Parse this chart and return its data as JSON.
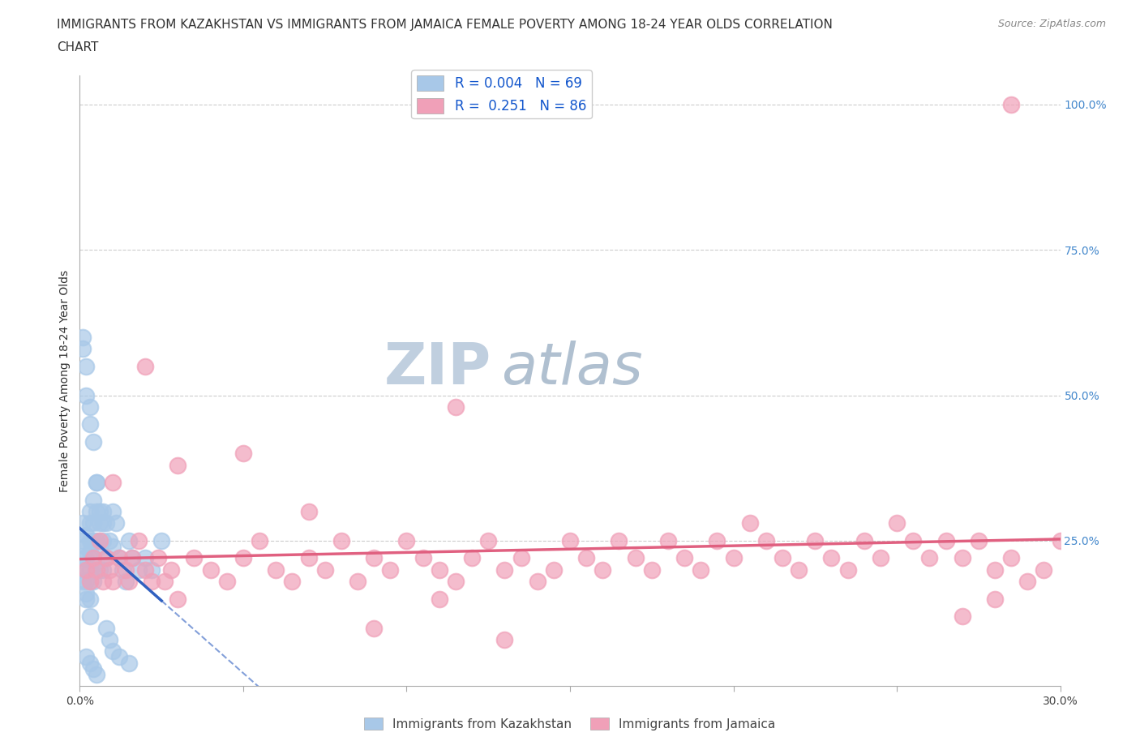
{
  "title_line1": "IMMIGRANTS FROM KAZAKHSTAN VS IMMIGRANTS FROM JAMAICA FEMALE POVERTY AMONG 18-24 YEAR OLDS CORRELATION",
  "title_line2": "CHART",
  "source": "Source: ZipAtlas.com",
  "ylabel": "Female Poverty Among 18-24 Year Olds",
  "xlim": [
    0.0,
    0.3
  ],
  "ylim": [
    0.0,
    1.05
  ],
  "xticks": [
    0.0,
    0.05,
    0.1,
    0.15,
    0.2,
    0.25,
    0.3
  ],
  "yticks_right": [
    0.0,
    0.25,
    0.5,
    0.75,
    1.0
  ],
  "hlines": [
    0.25,
    0.5,
    0.75,
    1.0
  ],
  "legend_kaz_R": "0.004",
  "legend_kaz_N": "69",
  "legend_jam_R": "0.251",
  "legend_jam_N": "86",
  "kaz_color": "#a8c8e8",
  "jam_color": "#f0a0b8",
  "kaz_trend_color": "#3060c0",
  "jam_trend_color": "#e06080",
  "watermark_zip": "ZIP",
  "watermark_atlas": "atlas",
  "watermark_color_zip": "#c8d8ee",
  "watermark_color_atlas": "#b8c8dd",
  "background_color": "#ffffff",
  "legend_label_kaz": "Immigrants from Kazakhstan",
  "legend_label_jam": "Immigrants from Jamaica",
  "title_fontsize": 11,
  "axis_label_fontsize": 10,
  "tick_fontsize": 10,
  "legend_R_color": "#1155cc",
  "right_tick_color": "#4488cc",
  "kaz_x": [
    0.001,
    0.001,
    0.001,
    0.001,
    0.001,
    0.002,
    0.002,
    0.002,
    0.002,
    0.002,
    0.002,
    0.002,
    0.003,
    0.003,
    0.003,
    0.003,
    0.003,
    0.003,
    0.003,
    0.003,
    0.004,
    0.004,
    0.004,
    0.004,
    0.004,
    0.005,
    0.005,
    0.005,
    0.005,
    0.006,
    0.006,
    0.006,
    0.007,
    0.007,
    0.007,
    0.008,
    0.008,
    0.009,
    0.01,
    0.01,
    0.011,
    0.012,
    0.013,
    0.014,
    0.015,
    0.016,
    0.018,
    0.02,
    0.022,
    0.025,
    0.001,
    0.001,
    0.002,
    0.002,
    0.003,
    0.003,
    0.004,
    0.005,
    0.006,
    0.007,
    0.008,
    0.009,
    0.01,
    0.012,
    0.015,
    0.002,
    0.003,
    0.004,
    0.005
  ],
  "kaz_y": [
    0.25,
    0.22,
    0.28,
    0.2,
    0.18,
    0.24,
    0.26,
    0.22,
    0.2,
    0.18,
    0.16,
    0.15,
    0.3,
    0.28,
    0.25,
    0.23,
    0.2,
    0.18,
    0.15,
    0.12,
    0.32,
    0.28,
    0.25,
    0.22,
    0.18,
    0.35,
    0.3,
    0.25,
    0.2,
    0.28,
    0.24,
    0.2,
    0.3,
    0.25,
    0.2,
    0.28,
    0.22,
    0.25,
    0.3,
    0.24,
    0.28,
    0.22,
    0.2,
    0.18,
    0.25,
    0.22,
    0.2,
    0.22,
    0.2,
    0.25,
    0.6,
    0.58,
    0.55,
    0.5,
    0.48,
    0.45,
    0.42,
    0.35,
    0.3,
    0.28,
    0.1,
    0.08,
    0.06,
    0.05,
    0.04,
    0.05,
    0.04,
    0.03,
    0.02
  ],
  "jam_x": [
    0.002,
    0.003,
    0.004,
    0.005,
    0.006,
    0.007,
    0.008,
    0.009,
    0.01,
    0.012,
    0.014,
    0.015,
    0.016,
    0.018,
    0.02,
    0.022,
    0.024,
    0.026,
    0.028,
    0.03,
    0.035,
    0.04,
    0.045,
    0.05,
    0.055,
    0.06,
    0.065,
    0.07,
    0.075,
    0.08,
    0.085,
    0.09,
    0.095,
    0.1,
    0.105,
    0.11,
    0.115,
    0.12,
    0.125,
    0.13,
    0.135,
    0.14,
    0.145,
    0.15,
    0.155,
    0.16,
    0.165,
    0.17,
    0.175,
    0.18,
    0.185,
    0.19,
    0.195,
    0.2,
    0.205,
    0.21,
    0.215,
    0.22,
    0.225,
    0.23,
    0.235,
    0.24,
    0.245,
    0.25,
    0.255,
    0.26,
    0.265,
    0.27,
    0.275,
    0.28,
    0.285,
    0.29,
    0.295,
    0.3,
    0.01,
    0.02,
    0.03,
    0.05,
    0.07,
    0.09,
    0.11,
    0.13,
    0.27,
    0.28,
    0.285,
    0.115
  ],
  "jam_y": [
    0.2,
    0.18,
    0.22,
    0.2,
    0.25,
    0.18,
    0.22,
    0.2,
    0.18,
    0.22,
    0.2,
    0.18,
    0.22,
    0.25,
    0.2,
    0.18,
    0.22,
    0.18,
    0.2,
    0.15,
    0.22,
    0.2,
    0.18,
    0.22,
    0.25,
    0.2,
    0.18,
    0.22,
    0.2,
    0.25,
    0.18,
    0.22,
    0.2,
    0.25,
    0.22,
    0.2,
    0.18,
    0.22,
    0.25,
    0.2,
    0.22,
    0.18,
    0.2,
    0.25,
    0.22,
    0.2,
    0.25,
    0.22,
    0.2,
    0.25,
    0.22,
    0.2,
    0.25,
    0.22,
    0.28,
    0.25,
    0.22,
    0.2,
    0.25,
    0.22,
    0.2,
    0.25,
    0.22,
    0.28,
    0.25,
    0.22,
    0.25,
    0.22,
    0.25,
    0.2,
    0.22,
    0.18,
    0.2,
    0.25,
    0.35,
    0.55,
    0.38,
    0.4,
    0.3,
    0.1,
    0.15,
    0.08,
    0.12,
    0.15,
    1.0,
    0.48
  ]
}
